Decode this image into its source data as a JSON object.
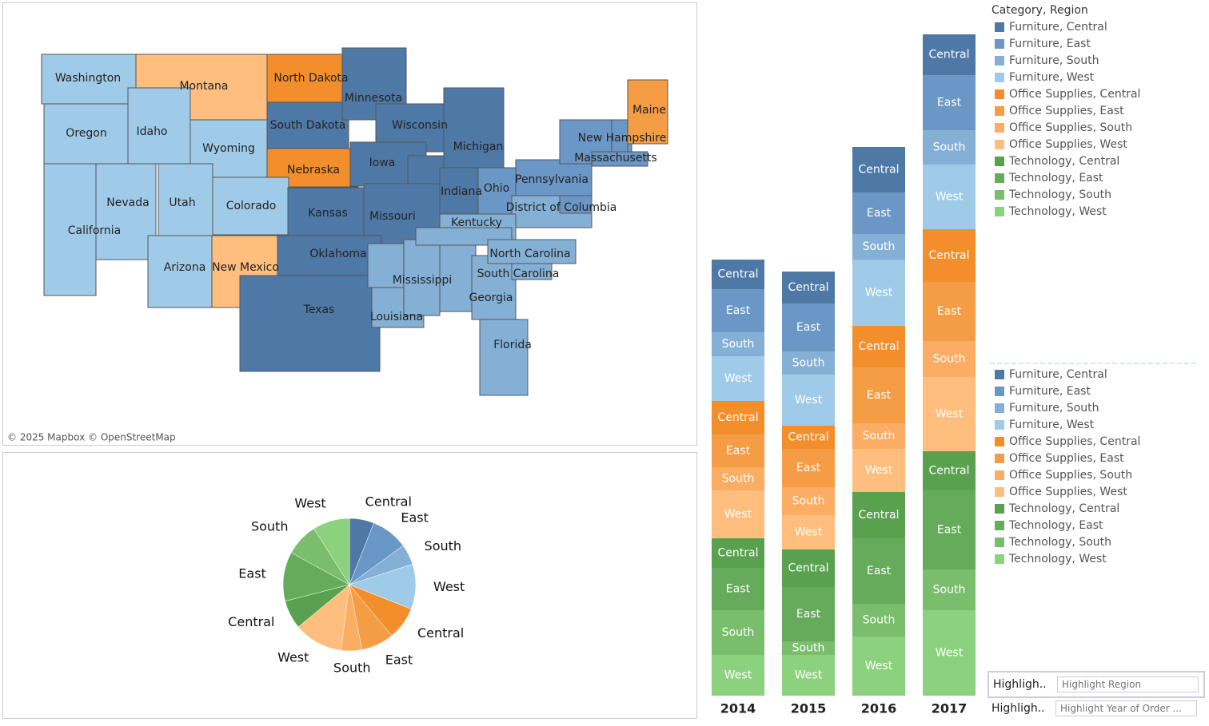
{
  "chart_data": [
    {
      "type": "map",
      "attribution": "© 2025 Mapbox © OpenStreetMap",
      "states": [
        {
          "name": "Washington",
          "color": "#a0cbe8"
        },
        {
          "name": "Oregon",
          "color": "#a0cbe8"
        },
        {
          "name": "Montana",
          "color": "#ffbe7d"
        },
        {
          "name": "Idaho",
          "color": "#a0cbe8"
        },
        {
          "name": "Wyoming",
          "color": "#a0cbe8"
        },
        {
          "name": "North Dakota",
          "color": "#f28e2b"
        },
        {
          "name": "South Dakota",
          "color": "#4e79a7"
        },
        {
          "name": "Nebraska",
          "color": "#f28e2b"
        },
        {
          "name": "Minnesota",
          "color": "#4e79a7"
        },
        {
          "name": "Wisconsin",
          "color": "#4e79a7"
        },
        {
          "name": "Michigan",
          "color": "#4e79a7"
        },
        {
          "name": "Iowa",
          "color": "#4e79a7"
        },
        {
          "name": null,
          "color": "#4e79a7"
        },
        {
          "name": "Indiana",
          "color": "#4e79a7"
        },
        {
          "name": "Ohio",
          "color": "#6b97c6"
        },
        {
          "name": "Pennsylvania",
          "color": "#6b97c6"
        },
        {
          "name": null,
          "color": "#6b97c6"
        },
        {
          "name": "New Hampshire",
          "color": "#6b97c6"
        },
        {
          "name": "Maine",
          "color": "#f59d45"
        },
        {
          "name": "Massachusetts",
          "color": "#6b97c6"
        },
        {
          "name": null,
          "color": "#85b0d6"
        },
        {
          "name": "District of Columbia",
          "color": "#6b97c6"
        },
        {
          "name": "Kentucky",
          "color": "#85b0d6"
        },
        {
          "name": "Nevada",
          "color": "#a0cbe8"
        },
        {
          "name": "Utah",
          "color": "#a0cbe8"
        },
        {
          "name": "Colorado",
          "color": "#a0cbe8"
        },
        {
          "name": "Kansas",
          "color": "#4e79a7"
        },
        {
          "name": "Missouri",
          "color": "#4e79a7"
        },
        {
          "name": "California",
          "color": "#a0cbe8"
        },
        {
          "name": "Arizona",
          "color": "#a0cbe8"
        },
        {
          "name": "New Mexico",
          "color": "#ffbe7d"
        },
        {
          "name": "Oklahoma",
          "color": "#4e79a7"
        },
        {
          "name": "Texas",
          "color": "#4e79a7"
        },
        {
          "name": null,
          "color": "#85b0d6"
        },
        {
          "name": "Louisiana",
          "color": "#85b0d6"
        },
        {
          "name": "Mississippi",
          "color": "#85b0d6"
        },
        {
          "name": null,
          "color": "#85b0d6"
        },
        {
          "name": null,
          "color": "#85b0d6"
        },
        {
          "name": "Georgia",
          "color": "#85b0d6"
        },
        {
          "name": "South Carolina",
          "color": "#85b0d6"
        },
        {
          "name": "North Carolina",
          "color": "#85b0d6"
        },
        {
          "name": "Florida",
          "color": "#85b0d6"
        }
      ]
    },
    {
      "type": "bar",
      "stacked": true,
      "legend_title": "Category, Region",
      "categories": [
        "2014",
        "2015",
        "2016",
        "2017"
      ],
      "series": [
        {
          "name": "Furniture, Central",
          "region": "Central",
          "color": "#4e79a7",
          "values": [
            37,
            40,
            57,
            51
          ]
        },
        {
          "name": "Furniture, East",
          "region": "East",
          "color": "#6b97c6",
          "values": [
            54,
            60,
            52,
            69
          ]
        },
        {
          "name": "Furniture, South",
          "region": "South",
          "color": "#85b0d6",
          "values": [
            30,
            29,
            32,
            43
          ]
        },
        {
          "name": "Furniture, West",
          "region": "West",
          "color": "#a0cbe8",
          "values": [
            56,
            64,
            83,
            81
          ]
        },
        {
          "name": "Office Supplies, Central",
          "region": "Central",
          "color": "#f28e2b",
          "values": [
            42,
            29,
            52,
            66
          ]
        },
        {
          "name": "Office Supplies, East",
          "region": "East",
          "color": "#f59d45",
          "values": [
            41,
            48,
            70,
            74
          ]
        },
        {
          "name": "Office Supplies, South",
          "region": "South",
          "color": "#fbad63",
          "values": [
            29,
            35,
            32,
            45
          ]
        },
        {
          "name": "Office Supplies, West",
          "region": "West",
          "color": "#ffbe7d",
          "values": [
            60,
            43,
            54,
            93
          ]
        },
        {
          "name": "Technology, Central",
          "region": "Central",
          "color": "#59a14f",
          "values": [
            37,
            47,
            58,
            49
          ]
        },
        {
          "name": "Technology, East",
          "region": "East",
          "color": "#65ab5b",
          "values": [
            53,
            68,
            82,
            99
          ]
        },
        {
          "name": "Technology, South",
          "region": "South",
          "color": "#79bd6d",
          "values": [
            56,
            17,
            41,
            51
          ]
        },
        {
          "name": "Technology, West",
          "region": "West",
          "color": "#8cd17d",
          "values": [
            51,
            51,
            74,
            107
          ]
        }
      ]
    },
    {
      "type": "pie",
      "categories": [
        "Central",
        "East",
        "South",
        "West",
        "Central",
        "East",
        "South",
        "West",
        "Central",
        "East",
        "South",
        "West"
      ],
      "values": [
        6,
        9,
        5,
        11,
        8,
        8,
        5,
        12,
        7,
        12,
        8,
        9
      ],
      "colors": [
        "#4e79a7",
        "#6b97c6",
        "#85b0d6",
        "#a0cbe8",
        "#f28e2b",
        "#f59d45",
        "#fbad63",
        "#ffbe7d",
        "#59a14f",
        "#65ab5b",
        "#79bd6d",
        "#8cd17d"
      ]
    }
  ],
  "controls": [
    {
      "label": "Highligh..",
      "placeholder": "Highlight Region"
    },
    {
      "label": "Highligh..",
      "placeholder": "Highlight Year of Order ..."
    }
  ]
}
